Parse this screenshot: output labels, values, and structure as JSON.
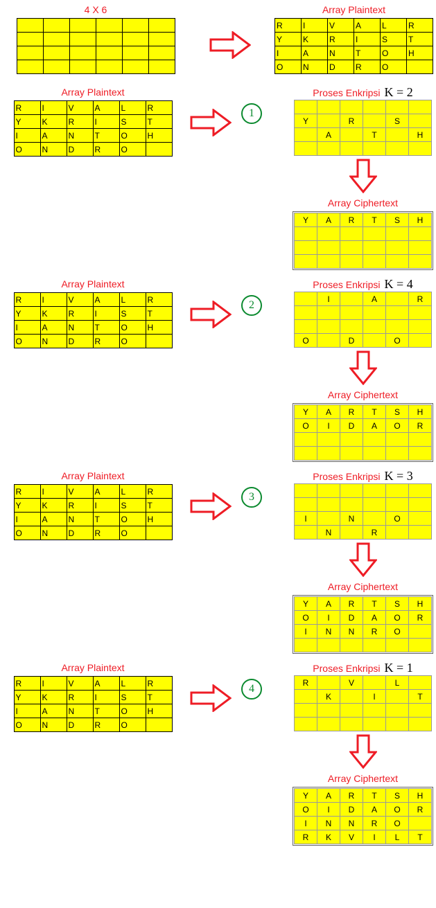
{
  "labels": {
    "dim": "4 X 6",
    "plain": "Array Plaintext",
    "proc": "Proses Enkripsi",
    "ciph": "Array Ciphertext"
  },
  "plain_rows": [
    [
      "R",
      "I",
      "V",
      "A",
      "L",
      "R"
    ],
    [
      "Y",
      "K",
      "R",
      "I",
      "S",
      "T"
    ],
    [
      "I",
      "A",
      "N",
      "T",
      "O",
      "H"
    ],
    [
      "O",
      "N",
      "D",
      "R",
      "O",
      ""
    ]
  ],
  "steps": [
    {
      "num": "1",
      "k": "K = 2",
      "proc": [
        [
          "",
          "",
          "",
          "",
          "",
          ""
        ],
        [
          "Y",
          "",
          "R",
          "",
          "S",
          ""
        ],
        [
          "",
          "A",
          "",
          "T",
          "",
          "H"
        ],
        [
          "",
          "",
          "",
          "",
          "",
          ""
        ]
      ],
      "ciph": [
        [
          "Y",
          "A",
          "R",
          "T",
          "S",
          "H"
        ],
        [
          "",
          "",
          "",
          "",
          "",
          ""
        ],
        [
          "",
          "",
          "",
          "",
          "",
          ""
        ],
        [
          "",
          "",
          "",
          "",
          "",
          ""
        ]
      ]
    },
    {
      "num": "2",
      "k": "K = 4",
      "proc": [
        [
          "",
          "I",
          "",
          "A",
          "",
          "R"
        ],
        [
          "",
          "",
          "",
          "",
          "",
          ""
        ],
        [
          "",
          "",
          "",
          "",
          "",
          ""
        ],
        [
          "O",
          "",
          "D",
          "",
          "O",
          ""
        ]
      ],
      "ciph": [
        [
          "Y",
          "A",
          "R",
          "T",
          "S",
          "H"
        ],
        [
          "O",
          "I",
          "D",
          "A",
          "O",
          "R"
        ],
        [
          "",
          "",
          "",
          "",
          "",
          ""
        ],
        [
          "",
          "",
          "",
          "",
          "",
          ""
        ]
      ]
    },
    {
      "num": "3",
      "k": "K = 3",
      "proc": [
        [
          "",
          "",
          "",
          "",
          "",
          ""
        ],
        [
          "",
          "",
          "",
          "",
          "",
          ""
        ],
        [
          "I",
          "",
          "N",
          "",
          "O",
          ""
        ],
        [
          "",
          "N",
          "",
          "R",
          "",
          ""
        ]
      ],
      "ciph": [
        [
          "Y",
          "A",
          "R",
          "T",
          "S",
          "H"
        ],
        [
          "O",
          "I",
          "D",
          "A",
          "O",
          "R"
        ],
        [
          "I",
          "N",
          "N",
          "R",
          "O",
          ""
        ],
        [
          "",
          "",
          "",
          "",
          "",
          ""
        ]
      ]
    },
    {
      "num": "4",
      "k": "K = 1",
      "proc": [
        [
          "R",
          "",
          "V",
          "",
          "L",
          ""
        ],
        [
          "",
          "K",
          "",
          "I",
          "",
          "T"
        ],
        [
          "",
          "",
          "",
          "",
          "",
          ""
        ],
        [
          "",
          "",
          "",
          "",
          "",
          ""
        ]
      ],
      "ciph": [
        [
          "Y",
          "A",
          "R",
          "T",
          "S",
          "H"
        ],
        [
          "O",
          "I",
          "D",
          "A",
          "O",
          "R"
        ],
        [
          "I",
          "N",
          "N",
          "R",
          "O",
          ""
        ],
        [
          "R",
          "K",
          "V",
          "I",
          "L",
          "T"
        ]
      ]
    }
  ],
  "colors": {
    "cell": "#ffff00",
    "accent": "#EE1C25",
    "circle": "#0b8a2f"
  }
}
